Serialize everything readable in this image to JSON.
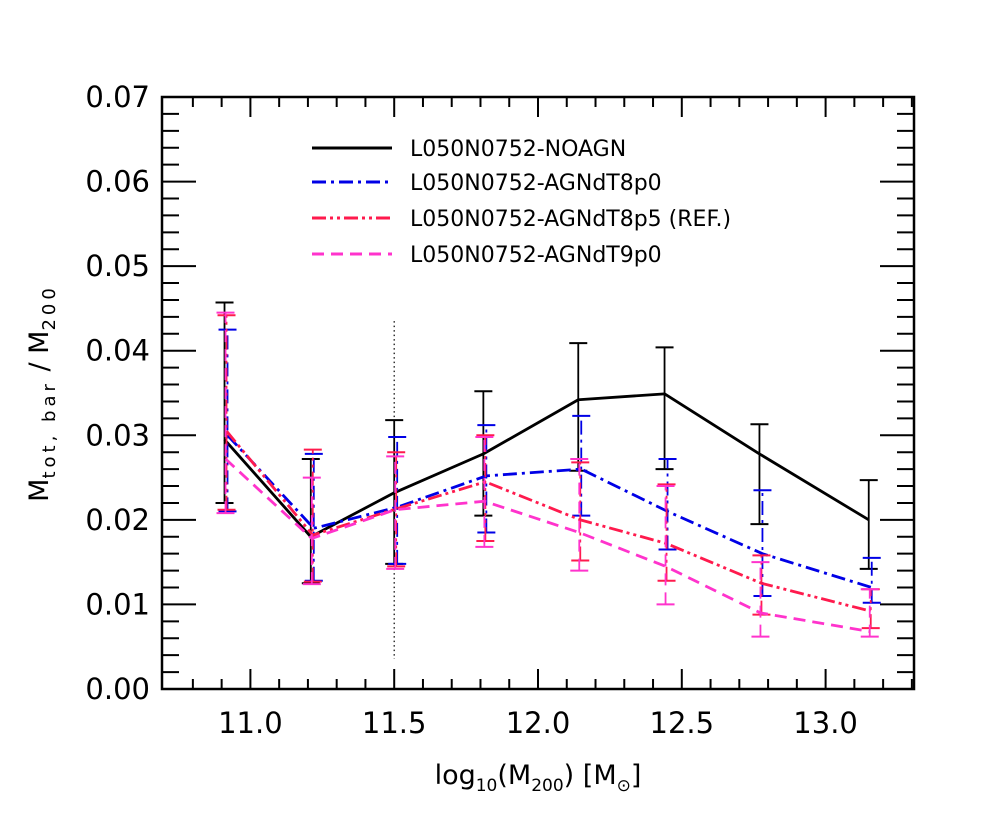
{
  "chart_data": {
    "type": "line",
    "xlabel": {
      "base": "log",
      "sub": "10",
      "mid": "(M",
      "sub2": "200",
      "end": ")  [M",
      "sym": "⊙",
      "close": "]"
    },
    "ylabel": {
      "main": "M",
      "sub": "tot, bar",
      "sep": " / M",
      "sub2": "200"
    },
    "xlim": [
      10.7,
      13.4
    ],
    "ylim": [
      0.0,
      0.07
    ],
    "xticks": [
      11.0,
      11.5,
      12.0,
      12.5,
      13.0
    ],
    "xtick_labels": [
      "11.0",
      "11.5",
      "12.0",
      "12.5",
      "13.0"
    ],
    "yticks": [
      0.0,
      0.01,
      0.02,
      0.03,
      0.04,
      0.05,
      0.06,
      0.07
    ],
    "ytick_labels": [
      "0.00",
      "0.01",
      "0.02",
      "0.03",
      "0.04",
      "0.05",
      "0.06",
      "0.07"
    ],
    "vline_x": 11.5,
    "grid": false,
    "legend_position": "top-center",
    "series": [
      {
        "name": "L050N0752-NOAGN",
        "color": "#000000",
        "dash": "solid",
        "x": [
          10.91,
          11.21,
          11.5,
          11.81,
          12.14,
          12.44,
          12.77,
          13.15
        ],
        "y": [
          0.0295,
          0.018,
          0.0232,
          0.0278,
          0.0342,
          0.0349,
          0.0278,
          0.02
        ],
        "err_lo": [
          0.022,
          0.0125,
          0.0148,
          0.0205,
          0.0258,
          0.026,
          0.0195,
          0.0142
        ],
        "err_hi": [
          0.0457,
          0.0272,
          0.0318,
          0.0352,
          0.0409,
          0.0404,
          0.0313,
          0.0247
        ]
      },
      {
        "name": "L050N0752-AGNdT8p0",
        "color": "#0000e6",
        "dash": "dashdot",
        "x": [
          10.91,
          11.21,
          11.5,
          11.81,
          12.14,
          12.44,
          12.77,
          13.15
        ],
        "y": [
          0.03,
          0.019,
          0.0215,
          0.0252,
          0.026,
          0.021,
          0.016,
          0.012
        ],
        "err_lo": [
          0.021,
          0.0128,
          0.0148,
          0.0185,
          0.0205,
          0.0165,
          0.011,
          0.0102
        ],
        "err_hi": [
          0.0425,
          0.0278,
          0.0298,
          0.0312,
          0.0323,
          0.0272,
          0.0235,
          0.0155
        ]
      },
      {
        "name": "L050N0752-AGNdT8p5 (REF.)",
        "color": "#ff1a4d",
        "dash": "dashdotdot",
        "x": [
          10.91,
          11.21,
          11.5,
          11.81,
          12.14,
          12.44,
          12.77,
          13.15
        ],
        "y": [
          0.0305,
          0.0182,
          0.0213,
          0.0245,
          0.02,
          0.0172,
          0.0125,
          0.0092
        ],
        "err_lo": [
          0.0212,
          0.0127,
          0.0145,
          0.0175,
          0.0152,
          0.0128,
          0.0088,
          0.0072
        ],
        "err_hi": [
          0.0442,
          0.0283,
          0.028,
          0.03,
          0.0268,
          0.0242,
          0.0158,
          0.0118
        ]
      },
      {
        "name": "L050N0752-AGNdT9p0",
        "color": "#ff33cc",
        "dash": "dashed",
        "x": [
          10.91,
          11.21,
          11.5,
          11.81,
          12.14,
          12.44,
          12.77,
          13.15
        ],
        "y": [
          0.0272,
          0.0178,
          0.0212,
          0.0222,
          0.0185,
          0.0145,
          0.009,
          0.0068
        ],
        "err_lo": [
          0.0208,
          0.0124,
          0.0142,
          0.0168,
          0.014,
          0.01,
          0.0062,
          0.0062
        ],
        "err_hi": [
          0.0445,
          0.025,
          0.0275,
          0.0298,
          0.0272,
          0.024,
          0.015,
          0.0118
        ]
      }
    ]
  }
}
